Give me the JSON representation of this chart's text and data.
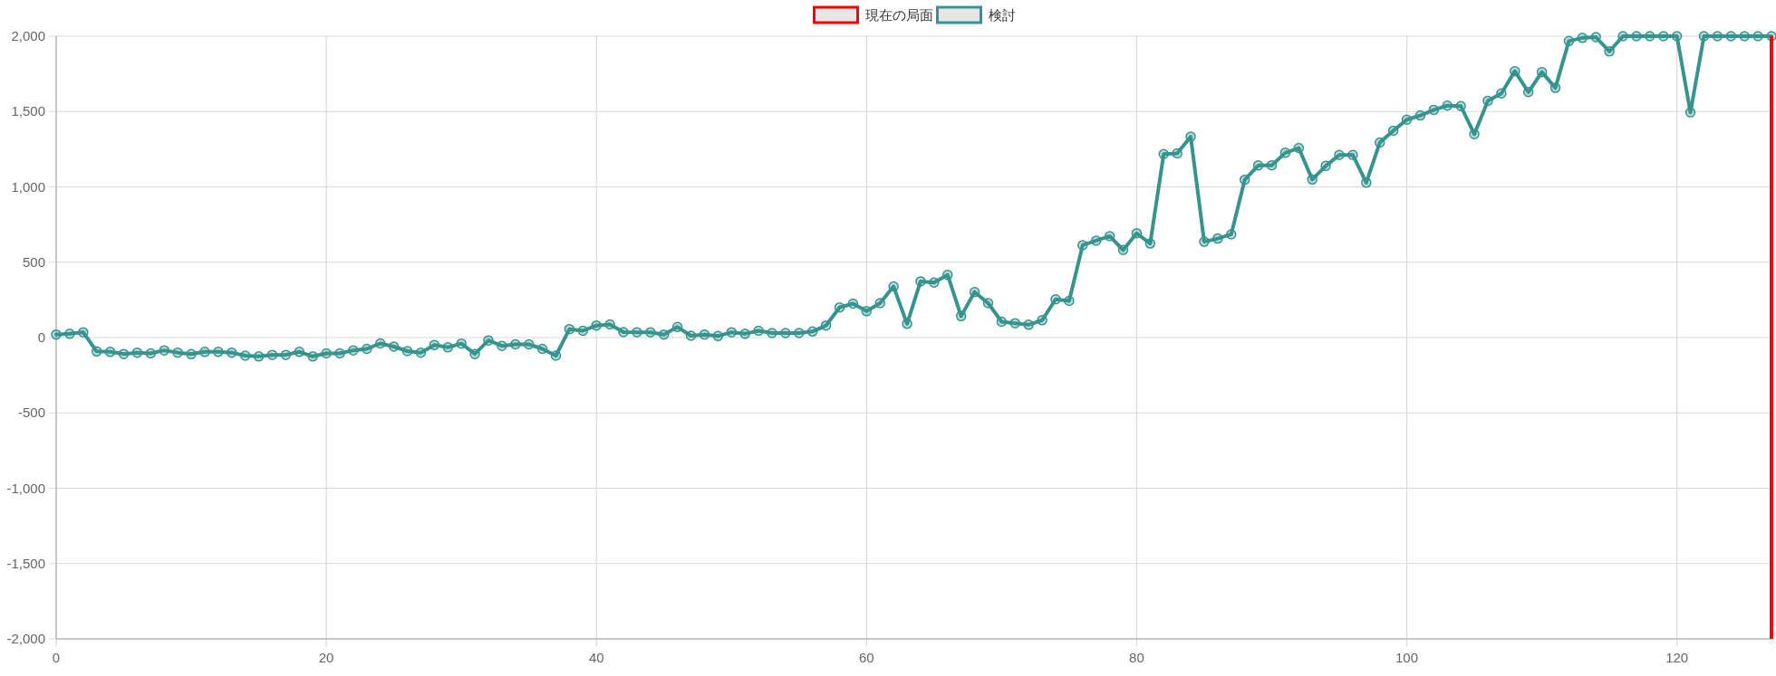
{
  "chart_data": {
    "type": "line",
    "x": [
      0,
      1,
      2,
      3,
      4,
      5,
      6,
      7,
      8,
      9,
      10,
      11,
      12,
      13,
      14,
      15,
      16,
      17,
      18,
      19,
      20,
      21,
      22,
      23,
      24,
      25,
      26,
      27,
      28,
      29,
      30,
      31,
      32,
      33,
      34,
      35,
      36,
      37,
      38,
      39,
      40,
      41,
      42,
      43,
      44,
      45,
      46,
      47,
      48,
      49,
      50,
      51,
      52,
      53,
      54,
      55,
      56,
      57,
      58,
      59,
      60,
      61,
      62,
      63,
      64,
      65,
      66,
      67,
      68,
      69,
      70,
      71,
      72,
      73,
      74,
      75,
      76,
      77,
      78,
      79,
      80,
      81,
      82,
      83,
      84,
      85,
      86,
      87,
      88,
      89,
      90,
      91,
      92,
      93,
      94,
      95,
      96,
      97,
      98,
      99,
      100,
      101,
      102,
      103,
      104,
      105,
      106,
      107,
      108,
      109,
      110,
      111,
      112,
      113,
      114,
      115,
      116,
      117,
      118,
      119,
      120,
      121,
      122,
      123,
      124,
      125,
      126,
      127
    ],
    "series": [
      {
        "name": "検討",
        "color": "#36948f",
        "values": [
          20,
          25,
          35,
          -92,
          -95,
          -109,
          -100,
          -105,
          -85,
          -100,
          -110,
          -95,
          -95,
          -100,
          -120,
          -125,
          -115,
          -115,
          -95,
          -125,
          -105,
          -105,
          -85,
          -75,
          -39,
          -60,
          -90,
          -100,
          -50,
          -65,
          -40,
          -109,
          -19,
          -55,
          -45,
          -45,
          -75,
          -120,
          56,
          45,
          80,
          87,
          36,
          35,
          35,
          20,
          70,
          12,
          20,
          10,
          35,
          25,
          45,
          30,
          30,
          30,
          40,
          80,
          200,
          225,
          175,
          228,
          339,
          91,
          373,
          365,
          416,
          142,
          302,
          228,
          105,
          95,
          85,
          115,
          254,
          243,
          613,
          643,
          673,
          581,
          692,
          624,
          1218,
          1222,
          1333,
          636,
          657,
          685,
          1047,
          1142,
          1143,
          1226,
          1258,
          1049,
          1139,
          1212,
          1212,
          1028,
          1294,
          1373,
          1446,
          1474,
          1511,
          1539,
          1536,
          1350,
          1571,
          1620,
          1768,
          1629,
          1762,
          1657,
          1968,
          1989,
          1994,
          1899,
          2000,
          2000,
          2000,
          2000,
          2000,
          1494,
          2000,
          2000,
          2000,
          2000,
          2000,
          2000
        ]
      }
    ],
    "xlim": [
      0,
      127
    ],
    "xticks": [
      0,
      20,
      40,
      60,
      80,
      100,
      120
    ],
    "ylim": [
      -2000,
      2000
    ],
    "yticks": [
      {
        "value": -2000,
        "label": "-2,000"
      },
      {
        "value": -1500,
        "label": "-1,500"
      },
      {
        "value": -1000,
        "label": "-1,000"
      },
      -500,
      0,
      500,
      {
        "value": 1000,
        "label": "1,000"
      },
      {
        "value": 1500,
        "label": "1,500"
      },
      {
        "value": 2000,
        "label": "2,000"
      }
    ],
    "ref_lines": [
      {
        "axis": "x",
        "value": 127,
        "label": "現在の局面",
        "color": "#ff0000"
      }
    ],
    "grid": true,
    "legend": "top",
    "marker": "circle",
    "line_style": "solid"
  }
}
